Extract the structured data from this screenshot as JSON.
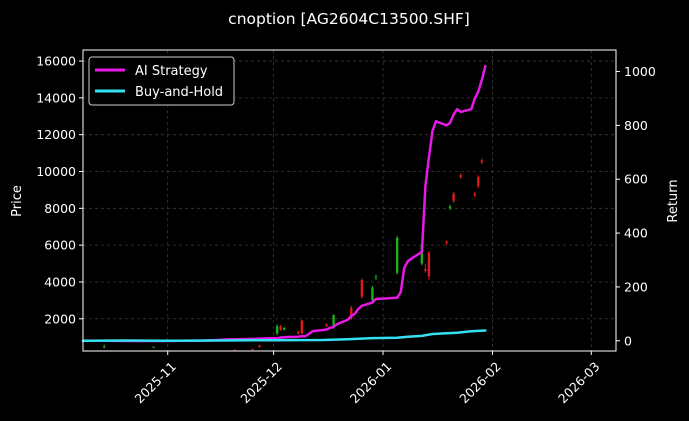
{
  "chart_data": {
    "type": "line",
    "title": "cnoption [AG2604C13500.SHF]",
    "ylabel_left": "Price",
    "ylabel_right": "Return",
    "xlabel": "",
    "x_ticks": [
      "2025-11",
      "2025-12",
      "2026-01",
      "2026-02",
      "2026-03"
    ],
    "x_range": [
      "2025-10-08",
      "2026-03-08"
    ],
    "y_left_ticks": [
      2000,
      4000,
      6000,
      8000,
      10000,
      12000,
      14000,
      16000
    ],
    "y_left_range": [
      250,
      16600
    ],
    "y_right_ticks": [
      0,
      200,
      400,
      600,
      800,
      1000
    ],
    "y_right_range": [
      -38,
      1080
    ],
    "grid": true,
    "legend_position": "top-left",
    "colors": {
      "background": "#000000",
      "ai_strategy": "#e619e6",
      "buy_and_hold": "#33e0f0",
      "candle_up": "#19b019",
      "candle_down": "#e01919",
      "grid": "#3a3a3a",
      "text": "#ffffff"
    },
    "series": [
      {
        "name": "AI Strategy",
        "axis": "right",
        "points": [
          [
            "2025-10-08",
            0
          ],
          [
            "2025-10-15",
            0
          ],
          [
            "2025-10-22",
            -1
          ],
          [
            "2025-10-29",
            -1
          ],
          [
            "2025-11-05",
            0
          ],
          [
            "2025-11-10",
            0
          ],
          [
            "2025-11-14",
            2
          ],
          [
            "2025-11-18",
            5
          ],
          [
            "2025-11-21",
            6
          ],
          [
            "2025-11-25",
            7
          ],
          [
            "2025-11-27",
            8
          ],
          [
            "2025-12-01",
            10
          ],
          [
            "2025-12-02",
            9
          ],
          [
            "2025-12-03",
            12
          ],
          [
            "2025-12-05",
            14
          ],
          [
            "2025-12-08",
            15
          ],
          [
            "2025-12-09",
            17
          ],
          [
            "2025-12-10",
            17
          ],
          [
            "2025-12-11",
            25
          ],
          [
            "2025-12-12",
            35
          ],
          [
            "2025-12-15",
            40
          ],
          [
            "2025-12-16",
            42
          ],
          [
            "2025-12-17",
            48
          ],
          [
            "2025-12-18",
            52
          ],
          [
            "2025-12-19",
            62
          ],
          [
            "2025-12-22",
            78
          ],
          [
            "2025-12-23",
            92
          ],
          [
            "2025-12-24",
            100
          ],
          [
            "2025-12-25",
            118
          ],
          [
            "2025-12-26",
            130
          ],
          [
            "2025-12-29",
            142
          ],
          [
            "2025-12-30",
            155
          ],
          [
            "2026-01-05",
            160
          ],
          [
            "2026-01-06",
            180
          ],
          [
            "2026-01-07",
            270
          ],
          [
            "2026-01-08",
            295
          ],
          [
            "2026-01-09",
            305
          ],
          [
            "2026-01-12",
            330
          ],
          [
            "2026-01-13",
            575
          ],
          [
            "2026-01-14",
            680
          ],
          [
            "2026-01-15",
            780
          ],
          [
            "2026-01-16",
            815
          ],
          [
            "2026-01-19",
            800
          ],
          [
            "2026-01-20",
            810
          ],
          [
            "2026-01-21",
            840
          ],
          [
            "2026-01-22",
            860
          ],
          [
            "2026-01-23",
            850
          ],
          [
            "2026-01-26",
            860
          ],
          [
            "2026-01-27",
            900
          ],
          [
            "2026-01-28",
            925
          ],
          [
            "2026-01-29",
            970
          ],
          [
            "2026-01-30",
            1020
          ]
        ]
      },
      {
        "name": "Buy-and-Hold",
        "axis": "right",
        "points": [
          [
            "2025-10-08",
            0
          ],
          [
            "2025-10-20",
            1
          ],
          [
            "2025-11-01",
            0
          ],
          [
            "2025-11-15",
            1
          ],
          [
            "2025-12-01",
            2
          ],
          [
            "2025-12-15",
            3
          ],
          [
            "2025-12-22",
            6
          ],
          [
            "2025-12-29",
            10
          ],
          [
            "2026-01-05",
            11
          ],
          [
            "2026-01-08",
            15
          ],
          [
            "2026-01-12",
            18
          ],
          [
            "2026-01-15",
            25
          ],
          [
            "2026-01-19",
            28
          ],
          [
            "2026-01-22",
            30
          ],
          [
            "2026-01-26",
            35
          ],
          [
            "2026-01-30",
            38
          ]
        ]
      }
    ],
    "candles": [
      {
        "date": "2025-10-14",
        "open": 500,
        "close": 500,
        "high": 600,
        "low": 400
      },
      {
        "date": "2025-10-28",
        "open": 480,
        "close": 480,
        "high": 500,
        "low": 450
      },
      {
        "date": "2025-11-20",
        "open": 320,
        "close": 280,
        "high": 330,
        "low": 260
      },
      {
        "date": "2025-11-25",
        "open": 360,
        "close": 320,
        "high": 380,
        "low": 300
      },
      {
        "date": "2025-11-27",
        "open": 560,
        "close": 460,
        "high": 580,
        "low": 440
      },
      {
        "date": "2025-12-02",
        "open": 1200,
        "close": 1600,
        "high": 1700,
        "low": 1100
      },
      {
        "date": "2025-12-03",
        "open": 1600,
        "close": 1400,
        "high": 1650,
        "low": 1350
      },
      {
        "date": "2025-12-04",
        "open": 1400,
        "close": 1500,
        "high": 1550,
        "low": 1380
      },
      {
        "date": "2025-12-08",
        "open": 1300,
        "close": 1200,
        "high": 1350,
        "low": 1150
      },
      {
        "date": "2025-12-09",
        "open": 1900,
        "close": 1200,
        "high": 1950,
        "low": 1150
      },
      {
        "date": "2025-12-16",
        "open": 1700,
        "close": 1600,
        "high": 1750,
        "low": 1550
      },
      {
        "date": "2025-12-18",
        "open": 1500,
        "close": 2200,
        "high": 2250,
        "low": 1450
      },
      {
        "date": "2025-12-23",
        "open": 2600,
        "close": 2000,
        "high": 2700,
        "low": 1950
      },
      {
        "date": "2025-12-26",
        "open": 4100,
        "close": 3200,
        "high": 4200,
        "low": 3100
      },
      {
        "date": "2025-12-29",
        "open": 3000,
        "close": 3700,
        "high": 3800,
        "low": 2900
      },
      {
        "date": "2025-12-30",
        "open": 4300,
        "close": 4300,
        "high": 4400,
        "low": 4100
      },
      {
        "date": "2026-01-05",
        "open": 4500,
        "close": 6400,
        "high": 6500,
        "low": 4400
      },
      {
        "date": "2026-01-12",
        "open": 5000,
        "close": 6000,
        "high": 6050,
        "low": 4900
      },
      {
        "date": "2026-01-13",
        "open": 4700,
        "close": 4600,
        "high": 5000,
        "low": 4500
      },
      {
        "date": "2026-01-14",
        "open": 5600,
        "close": 4300,
        "high": 5700,
        "low": 4100
      },
      {
        "date": "2026-01-19",
        "open": 6200,
        "close": 6100,
        "high": 6250,
        "low": 6000
      },
      {
        "date": "2026-01-20",
        "open": 8000,
        "close": 8100,
        "high": 8200,
        "low": 7900
      },
      {
        "date": "2026-01-21",
        "open": 8800,
        "close": 8400,
        "high": 8900,
        "low": 8300
      },
      {
        "date": "2026-01-23",
        "open": 9800,
        "close": 9700,
        "high": 9900,
        "low": 9600
      },
      {
        "date": "2026-01-27",
        "open": 8800,
        "close": 8700,
        "high": 8900,
        "low": 8600
      },
      {
        "date": "2026-01-28",
        "open": 9700,
        "close": 9200,
        "high": 9800,
        "low": 9100
      },
      {
        "date": "2026-01-29",
        "open": 10600,
        "close": 10500,
        "high": 10700,
        "low": 10400
      }
    ]
  }
}
